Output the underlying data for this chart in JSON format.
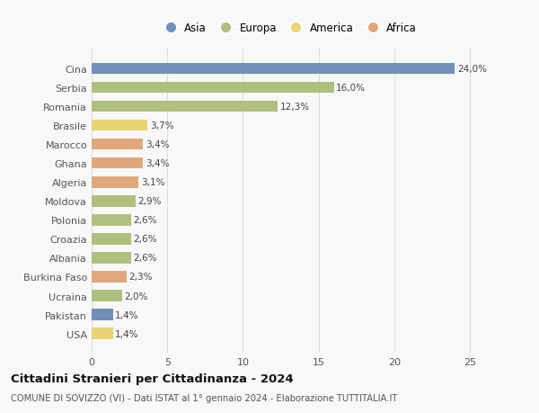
{
  "countries": [
    "Cina",
    "Serbia",
    "Romania",
    "Brasile",
    "Marocco",
    "Ghana",
    "Algeria",
    "Moldova",
    "Polonia",
    "Croazia",
    "Albania",
    "Burkina Faso",
    "Ucraina",
    "Pakistan",
    "USA"
  ],
  "values": [
    24.0,
    16.0,
    12.3,
    3.7,
    3.4,
    3.4,
    3.1,
    2.9,
    2.6,
    2.6,
    2.6,
    2.3,
    2.0,
    1.4,
    1.4
  ],
  "labels": [
    "24,0%",
    "16,0%",
    "12,3%",
    "3,7%",
    "3,4%",
    "3,4%",
    "3,1%",
    "2,9%",
    "2,6%",
    "2,6%",
    "2,6%",
    "2,3%",
    "2,0%",
    "1,4%",
    "1,4%"
  ],
  "colors": [
    "#7090bb",
    "#aec07e",
    "#aec07e",
    "#e8d472",
    "#e0a87a",
    "#e0a87a",
    "#e0a87a",
    "#aec07e",
    "#aec07e",
    "#aec07e",
    "#aec07e",
    "#e0a87a",
    "#aec07e",
    "#7090bb",
    "#e8d472"
  ],
  "legend_labels": [
    "Asia",
    "Europa",
    "America",
    "Africa"
  ],
  "legend_colors": [
    "#7090bb",
    "#aec07e",
    "#e8d472",
    "#e0a87a"
  ],
  "xlim": [
    0,
    26
  ],
  "xticks": [
    0,
    5,
    10,
    15,
    20,
    25
  ],
  "title": "Cittadini Stranieri per Cittadinanza - 2024",
  "subtitle": "COMUNE DI SOVIZZO (VI) - Dati ISTAT al 1° gennaio 2024 - Elaborazione TUTTITALIA.IT",
  "bg_color": "#f8f8f8",
  "grid_color": "#dddddd",
  "bar_height": 0.6
}
